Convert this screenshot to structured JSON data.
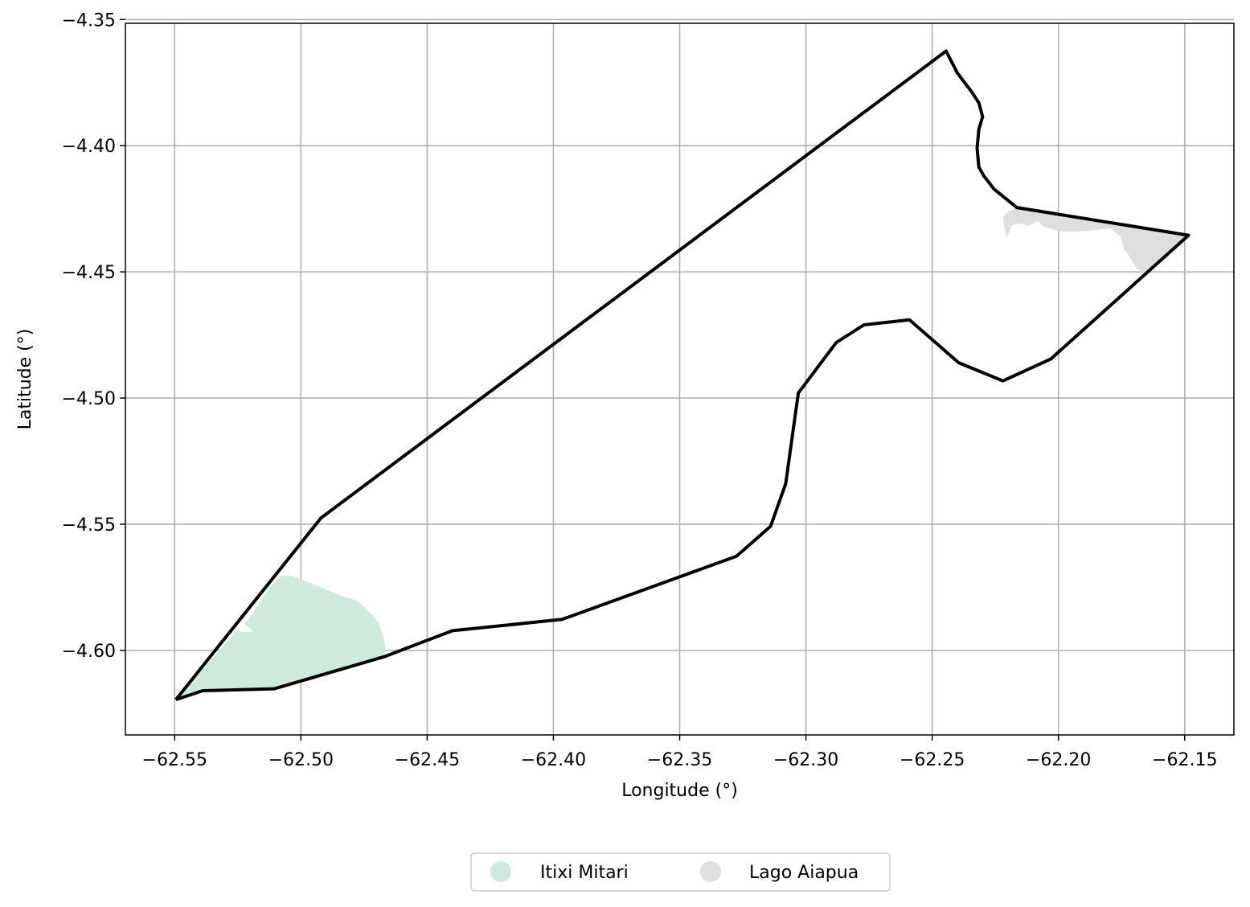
{
  "chart_data": {
    "type": "map",
    "xlabel": "Longitude (°)",
    "ylabel": "Latitude (°)",
    "xlim": [
      -62.5695,
      -62.1305
    ],
    "ylim": [
      -4.6335,
      -4.3515
    ],
    "grid": true,
    "x_ticks": [
      -62.55,
      -62.5,
      -62.45,
      -62.4,
      -62.35,
      -62.3,
      -62.25,
      -62.2,
      -62.15
    ],
    "x_tick_labels": [
      "−62.55",
      "−62.50",
      "−62.45",
      "−62.40",
      "−62.35",
      "−62.30",
      "−62.25",
      "−62.20",
      "−62.15"
    ],
    "y_ticks": [
      -4.35,
      -4.4,
      -4.45,
      -4.5,
      -4.55,
      -4.6
    ],
    "y_tick_labels": [
      "−4.35",
      "−4.40",
      "−4.45",
      "−4.50",
      "−4.55",
      "−4.60"
    ],
    "legend_placement": "bottom-center",
    "boundary": {
      "stroke": "#000000",
      "coords": [
        [
          -62.5495,
          -4.6195
        ],
        [
          -62.539,
          -4.616
        ],
        [
          -62.5105,
          -4.6152
        ],
        [
          -62.467,
          -4.6025
        ],
        [
          -62.44,
          -4.5922
        ],
        [
          -62.3965,
          -4.5877
        ],
        [
          -62.3275,
          -4.5627
        ],
        [
          -62.314,
          -4.5508
        ],
        [
          -62.308,
          -4.534
        ],
        [
          -62.303,
          -4.498
        ],
        [
          -62.288,
          -4.478
        ],
        [
          -62.277,
          -4.471
        ],
        [
          -62.259,
          -4.469
        ],
        [
          -62.2395,
          -4.486
        ],
        [
          -62.222,
          -4.4932
        ],
        [
          -62.203,
          -4.4845
        ],
        [
          -62.1485,
          -4.4355
        ],
        [
          -62.2165,
          -4.4245
        ],
        [
          -62.2255,
          -4.4172
        ],
        [
          -62.2295,
          -4.412
        ],
        [
          -62.2315,
          -4.4085
        ],
        [
          -62.2322,
          -4.401
        ],
        [
          -62.2315,
          -4.3935
        ],
        [
          -62.23,
          -4.3885
        ],
        [
          -62.2315,
          -4.383
        ],
        [
          -62.2345,
          -4.3785
        ],
        [
          -62.24,
          -4.3712
        ],
        [
          -62.2445,
          -4.3625
        ],
        [
          -62.492,
          -4.5475
        ],
        [
          -62.5495,
          -4.6195
        ]
      ]
    },
    "series": [
      {
        "name": "Itixi Mitari",
        "color": "#cfeadd",
        "polygon": [
          [
            -62.5495,
            -4.6195
          ],
          [
            -62.539,
            -4.616
          ],
          [
            -62.5105,
            -4.6152
          ],
          [
            -62.467,
            -4.6025
          ],
          [
            -62.4665,
            -4.599
          ],
          [
            -62.4675,
            -4.5935
          ],
          [
            -62.4695,
            -4.5885
          ],
          [
            -62.4745,
            -4.5832
          ],
          [
            -62.478,
            -4.5802
          ],
          [
            -62.485,
            -4.578
          ],
          [
            -62.4915,
            -4.5752
          ],
          [
            -62.499,
            -4.5722
          ],
          [
            -62.504,
            -4.5705
          ],
          [
            -62.5075,
            -4.5705
          ],
          [
            -62.5115,
            -4.574
          ],
          [
            -62.516,
            -4.5805
          ],
          [
            -62.521,
            -4.588
          ],
          [
            -62.5225,
            -4.5895
          ],
          [
            -62.519,
            -4.5925
          ],
          [
            -62.522,
            -4.5928
          ],
          [
            -62.5255,
            -4.5923
          ],
          [
            -62.5495,
            -4.6195
          ]
        ]
      },
      {
        "name": "Lago Aiapua",
        "color": "#dedede",
        "polygon": [
          [
            -62.2165,
            -4.4245
          ],
          [
            -62.1485,
            -4.4355
          ],
          [
            -62.165,
            -4.451
          ],
          [
            -62.169,
            -4.4488
          ],
          [
            -62.1715,
            -4.4445
          ],
          [
            -62.174,
            -4.4408
          ],
          [
            -62.1755,
            -4.4358
          ],
          [
            -62.1795,
            -4.4328
          ],
          [
            -62.189,
            -4.4338
          ],
          [
            -62.195,
            -4.4342
          ],
          [
            -62.2,
            -4.4338
          ],
          [
            -62.206,
            -4.432
          ],
          [
            -62.208,
            -4.4298
          ],
          [
            -62.212,
            -4.4318
          ],
          [
            -62.215,
            -4.4308
          ],
          [
            -62.2185,
            -4.4315
          ],
          [
            -62.2195,
            -4.4342
          ],
          [
            -62.2205,
            -4.4362
          ],
          [
            -62.2215,
            -4.4318
          ],
          [
            -62.222,
            -4.4285
          ],
          [
            -62.22,
            -4.4262
          ],
          [
            -62.2165,
            -4.4245
          ]
        ]
      }
    ]
  }
}
